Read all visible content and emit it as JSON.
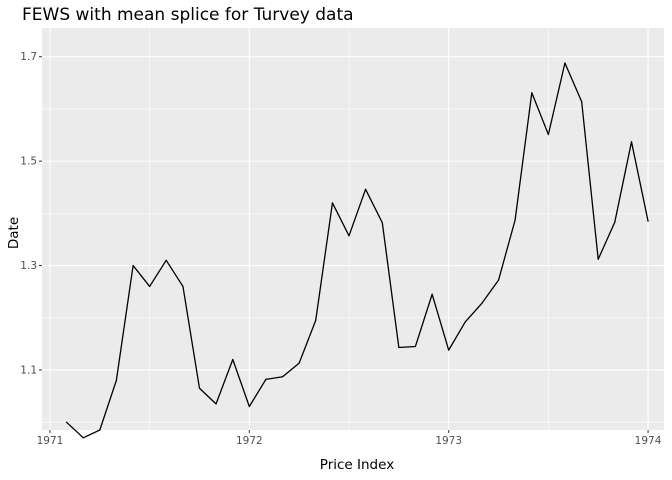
{
  "chart_data": {
    "type": "line",
    "title": "FEWS with mean splice for Turvey data",
    "xlabel": "Price Index",
    "ylabel": "Date",
    "xlim": [
      1970.96,
      1974.08
    ],
    "ylim": [
      0.985,
      1.755
    ],
    "x_ticks": [
      {
        "value": 1971,
        "label": "1971"
      },
      {
        "value": 1972,
        "label": "1972"
      },
      {
        "value": 1973,
        "label": "1973"
      },
      {
        "value": 1974,
        "label": "1974"
      }
    ],
    "y_ticks": [
      {
        "value": 1.1,
        "label": "1.1"
      },
      {
        "value": 1.3,
        "label": "1.3"
      },
      {
        "value": 1.5,
        "label": "1.5"
      },
      {
        "value": 1.7,
        "label": "1.7"
      }
    ],
    "grid": true,
    "panel_background": "#EBEBEB",
    "grid_color": "#FFFFFF",
    "line_color": "#000000",
    "series": [
      {
        "x": [
          1971.083,
          1971.167,
          1971.25,
          1971.333,
          1971.417,
          1971.5,
          1971.583,
          1971.667,
          1971.75,
          1971.833,
          1971.917,
          1972.0,
          1972.083,
          1972.167,
          1972.25,
          1972.333,
          1972.417,
          1972.5,
          1972.583,
          1972.667,
          1972.75,
          1972.833,
          1972.917,
          1973.0,
          1973.083,
          1973.167,
          1973.25,
          1973.333,
          1973.417,
          1973.5,
          1973.583,
          1973.667,
          1973.75,
          1973.833,
          1973.917,
          1974.0
        ],
        "y": [
          1.0,
          0.97,
          0.985,
          1.08,
          1.3,
          1.26,
          1.31,
          1.26,
          1.065,
          1.035,
          1.12,
          1.03,
          1.082,
          1.087,
          1.113,
          1.195,
          1.42,
          1.357,
          1.446,
          1.382,
          1.143,
          1.145,
          1.245,
          1.138,
          1.192,
          1.228,
          1.272,
          1.387,
          1.631,
          1.551,
          1.688,
          1.614,
          1.312,
          1.383,
          1.537,
          1.385
        ]
      }
    ]
  }
}
